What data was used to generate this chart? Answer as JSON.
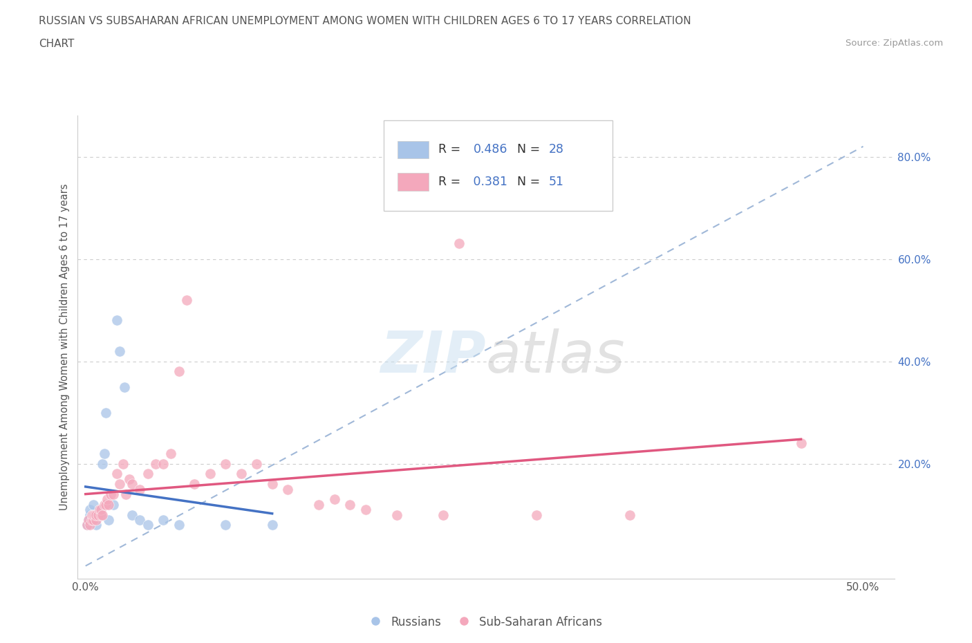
{
  "title_line1": "RUSSIAN VS SUBSAHARAN AFRICAN UNEMPLOYMENT AMONG WOMEN WITH CHILDREN AGES 6 TO 17 YEARS CORRELATION",
  "title_line2": "CHART",
  "source": "Source: ZipAtlas.com",
  "ylabel": "Unemployment Among Women with Children Ages 6 to 17 years",
  "russian_R": 0.486,
  "russian_N": 28,
  "subsaharan_R": 0.381,
  "subsaharan_N": 51,
  "russian_color": "#a8c4e8",
  "subsaharan_color": "#f4a8bc",
  "russian_line_color": "#4472c4",
  "subsaharan_line_color": "#e05880",
  "dashed_line_color": "#a0b8d8",
  "legend_label_russian": "Russians",
  "legend_label_subsaharan": "Sub-Saharan Africans",
  "watermark": "ZIPatlas",
  "xlim": [
    -0.005,
    0.52
  ],
  "ylim": [
    -0.025,
    0.88
  ],
  "russian_x": [
    0.001,
    0.002,
    0.003,
    0.003,
    0.004,
    0.005,
    0.005,
    0.006,
    0.007,
    0.007,
    0.008,
    0.009,
    0.01,
    0.011,
    0.012,
    0.013,
    0.015,
    0.018,
    0.02,
    0.022,
    0.025,
    0.03,
    0.035,
    0.04,
    0.05,
    0.06,
    0.09,
    0.12
  ],
  "russian_y": [
    0.08,
    0.09,
    0.1,
    0.11,
    0.1,
    0.09,
    0.12,
    0.1,
    0.08,
    0.1,
    0.1,
    0.11,
    0.1,
    0.2,
    0.22,
    0.3,
    0.09,
    0.12,
    0.48,
    0.42,
    0.35,
    0.1,
    0.09,
    0.08,
    0.09,
    0.08,
    0.08,
    0.08
  ],
  "subsaharan_x": [
    0.001,
    0.002,
    0.003,
    0.004,
    0.004,
    0.005,
    0.005,
    0.006,
    0.007,
    0.007,
    0.008,
    0.009,
    0.01,
    0.01,
    0.011,
    0.012,
    0.013,
    0.014,
    0.015,
    0.016,
    0.018,
    0.02,
    0.022,
    0.024,
    0.026,
    0.028,
    0.03,
    0.035,
    0.04,
    0.045,
    0.05,
    0.055,
    0.06,
    0.065,
    0.07,
    0.08,
    0.09,
    0.1,
    0.11,
    0.12,
    0.13,
    0.15,
    0.16,
    0.17,
    0.18,
    0.2,
    0.23,
    0.24,
    0.29,
    0.35,
    0.46
  ],
  "subsaharan_y": [
    0.08,
    0.09,
    0.08,
    0.09,
    0.1,
    0.09,
    0.1,
    0.1,
    0.09,
    0.1,
    0.1,
    0.11,
    0.1,
    0.11,
    0.1,
    0.12,
    0.12,
    0.13,
    0.12,
    0.14,
    0.14,
    0.18,
    0.16,
    0.2,
    0.14,
    0.17,
    0.16,
    0.15,
    0.18,
    0.2,
    0.2,
    0.22,
    0.38,
    0.52,
    0.16,
    0.18,
    0.2,
    0.18,
    0.2,
    0.16,
    0.15,
    0.12,
    0.13,
    0.12,
    0.11,
    0.1,
    0.1,
    0.63,
    0.1,
    0.1,
    0.24
  ]
}
